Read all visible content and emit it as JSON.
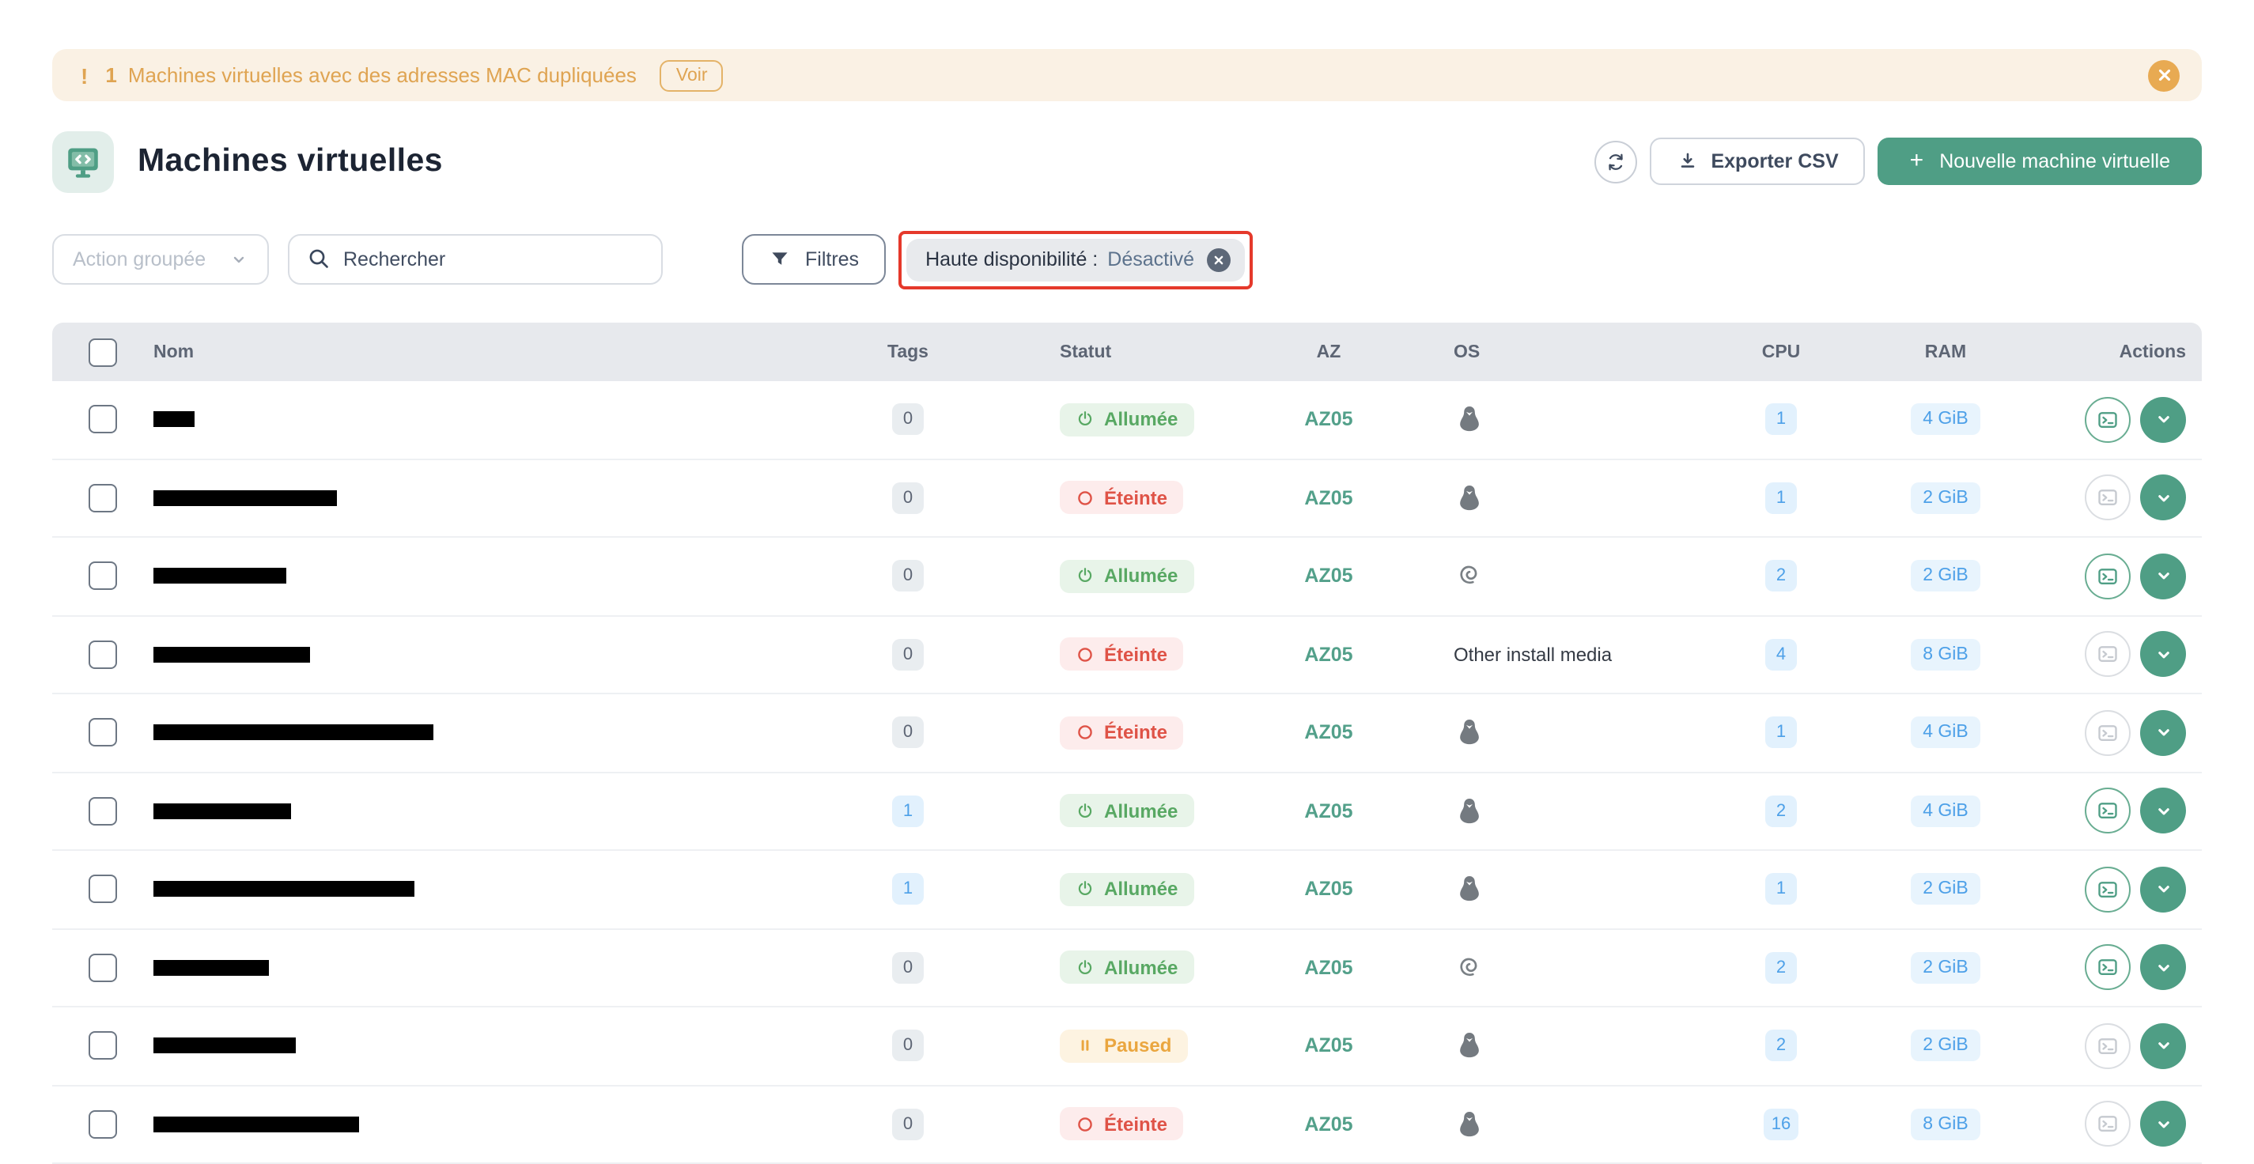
{
  "banner": {
    "alert_glyph": "!",
    "count": "1",
    "message": "Machines virtuelles avec des adresses MAC dupliquées",
    "action_label": "Voir"
  },
  "header": {
    "title": "Machines virtuelles",
    "export_label": "Exporter CSV",
    "new_vm_plus": "+",
    "new_vm_label": "Nouvelle machine virtuelle"
  },
  "toolbar": {
    "bulk_action_label": "Action groupée",
    "search_placeholder": "Rechercher",
    "filters_label": "Filtres",
    "filter_chip": {
      "label": "Haute disponibilité :",
      "value": "Désactivé"
    }
  },
  "colors": {
    "brand_green": "#4f9e85",
    "warning_orange": "#dfa452",
    "status_on_green": "#58a863",
    "status_off_red": "#df5347",
    "status_paused_orange": "#eaa63f",
    "info_blue": "#4da0e8",
    "az_teal": "#53a08a",
    "annotation_red": "#e5392b"
  },
  "table": {
    "columns": [
      "Nom",
      "Tags",
      "Statut",
      "AZ",
      "OS",
      "CPU",
      "RAM",
      "Actions"
    ],
    "rows": [
      {
        "name_bar_width": 26,
        "tags": "0",
        "tags_variant": "muted",
        "status": "Allumée",
        "status_variant": "on",
        "az": "AZ05",
        "os": "tux",
        "os_label": "",
        "cpu": "1",
        "ram": "4 GiB",
        "console_enabled": true
      },
      {
        "name_bar_width": 116,
        "tags": "0",
        "tags_variant": "muted",
        "status": "Éteinte",
        "status_variant": "off",
        "az": "AZ05",
        "os": "tux",
        "os_label": "",
        "cpu": "1",
        "ram": "2 GiB",
        "console_enabled": false
      },
      {
        "name_bar_width": 84,
        "tags": "0",
        "tags_variant": "muted",
        "status": "Allumée",
        "status_variant": "on",
        "az": "AZ05",
        "os": "debian",
        "os_label": "",
        "cpu": "2",
        "ram": "2 GiB",
        "console_enabled": true
      },
      {
        "name_bar_width": 99,
        "tags": "0",
        "tags_variant": "muted",
        "status": "Éteinte",
        "status_variant": "off",
        "az": "AZ05",
        "os": "other",
        "os_label": "Other install media",
        "cpu": "4",
        "ram": "8 GiB",
        "console_enabled": false
      },
      {
        "name_bar_width": 177,
        "tags": "0",
        "tags_variant": "muted",
        "status": "Éteinte",
        "status_variant": "off",
        "az": "AZ05",
        "os": "tux",
        "os_label": "",
        "cpu": "1",
        "ram": "4 GiB",
        "console_enabled": false
      },
      {
        "name_bar_width": 87,
        "tags": "1",
        "tags_variant": "blue",
        "status": "Allumée",
        "status_variant": "on",
        "az": "AZ05",
        "os": "tux",
        "os_label": "",
        "cpu": "2",
        "ram": "4 GiB",
        "console_enabled": true
      },
      {
        "name_bar_width": 165,
        "tags": "1",
        "tags_variant": "blue",
        "status": "Allumée",
        "status_variant": "on",
        "az": "AZ05",
        "os": "tux",
        "os_label": "",
        "cpu": "1",
        "ram": "2 GiB",
        "console_enabled": true
      },
      {
        "name_bar_width": 73,
        "tags": "0",
        "tags_variant": "muted",
        "status": "Allumée",
        "status_variant": "on",
        "az": "AZ05",
        "os": "debian",
        "os_label": "",
        "cpu": "2",
        "ram": "2 GiB",
        "console_enabled": true
      },
      {
        "name_bar_width": 90,
        "tags": "0",
        "tags_variant": "muted",
        "status": "Paused",
        "status_variant": "paused",
        "az": "AZ05",
        "os": "tux",
        "os_label": "",
        "cpu": "2",
        "ram": "2 GiB",
        "console_enabled": false
      },
      {
        "name_bar_width": 130,
        "tags": "0",
        "tags_variant": "muted",
        "status": "Éteinte",
        "status_variant": "off",
        "az": "AZ05",
        "os": "tux",
        "os_label": "",
        "cpu": "16",
        "ram": "8 GiB",
        "console_enabled": false
      }
    ]
  }
}
